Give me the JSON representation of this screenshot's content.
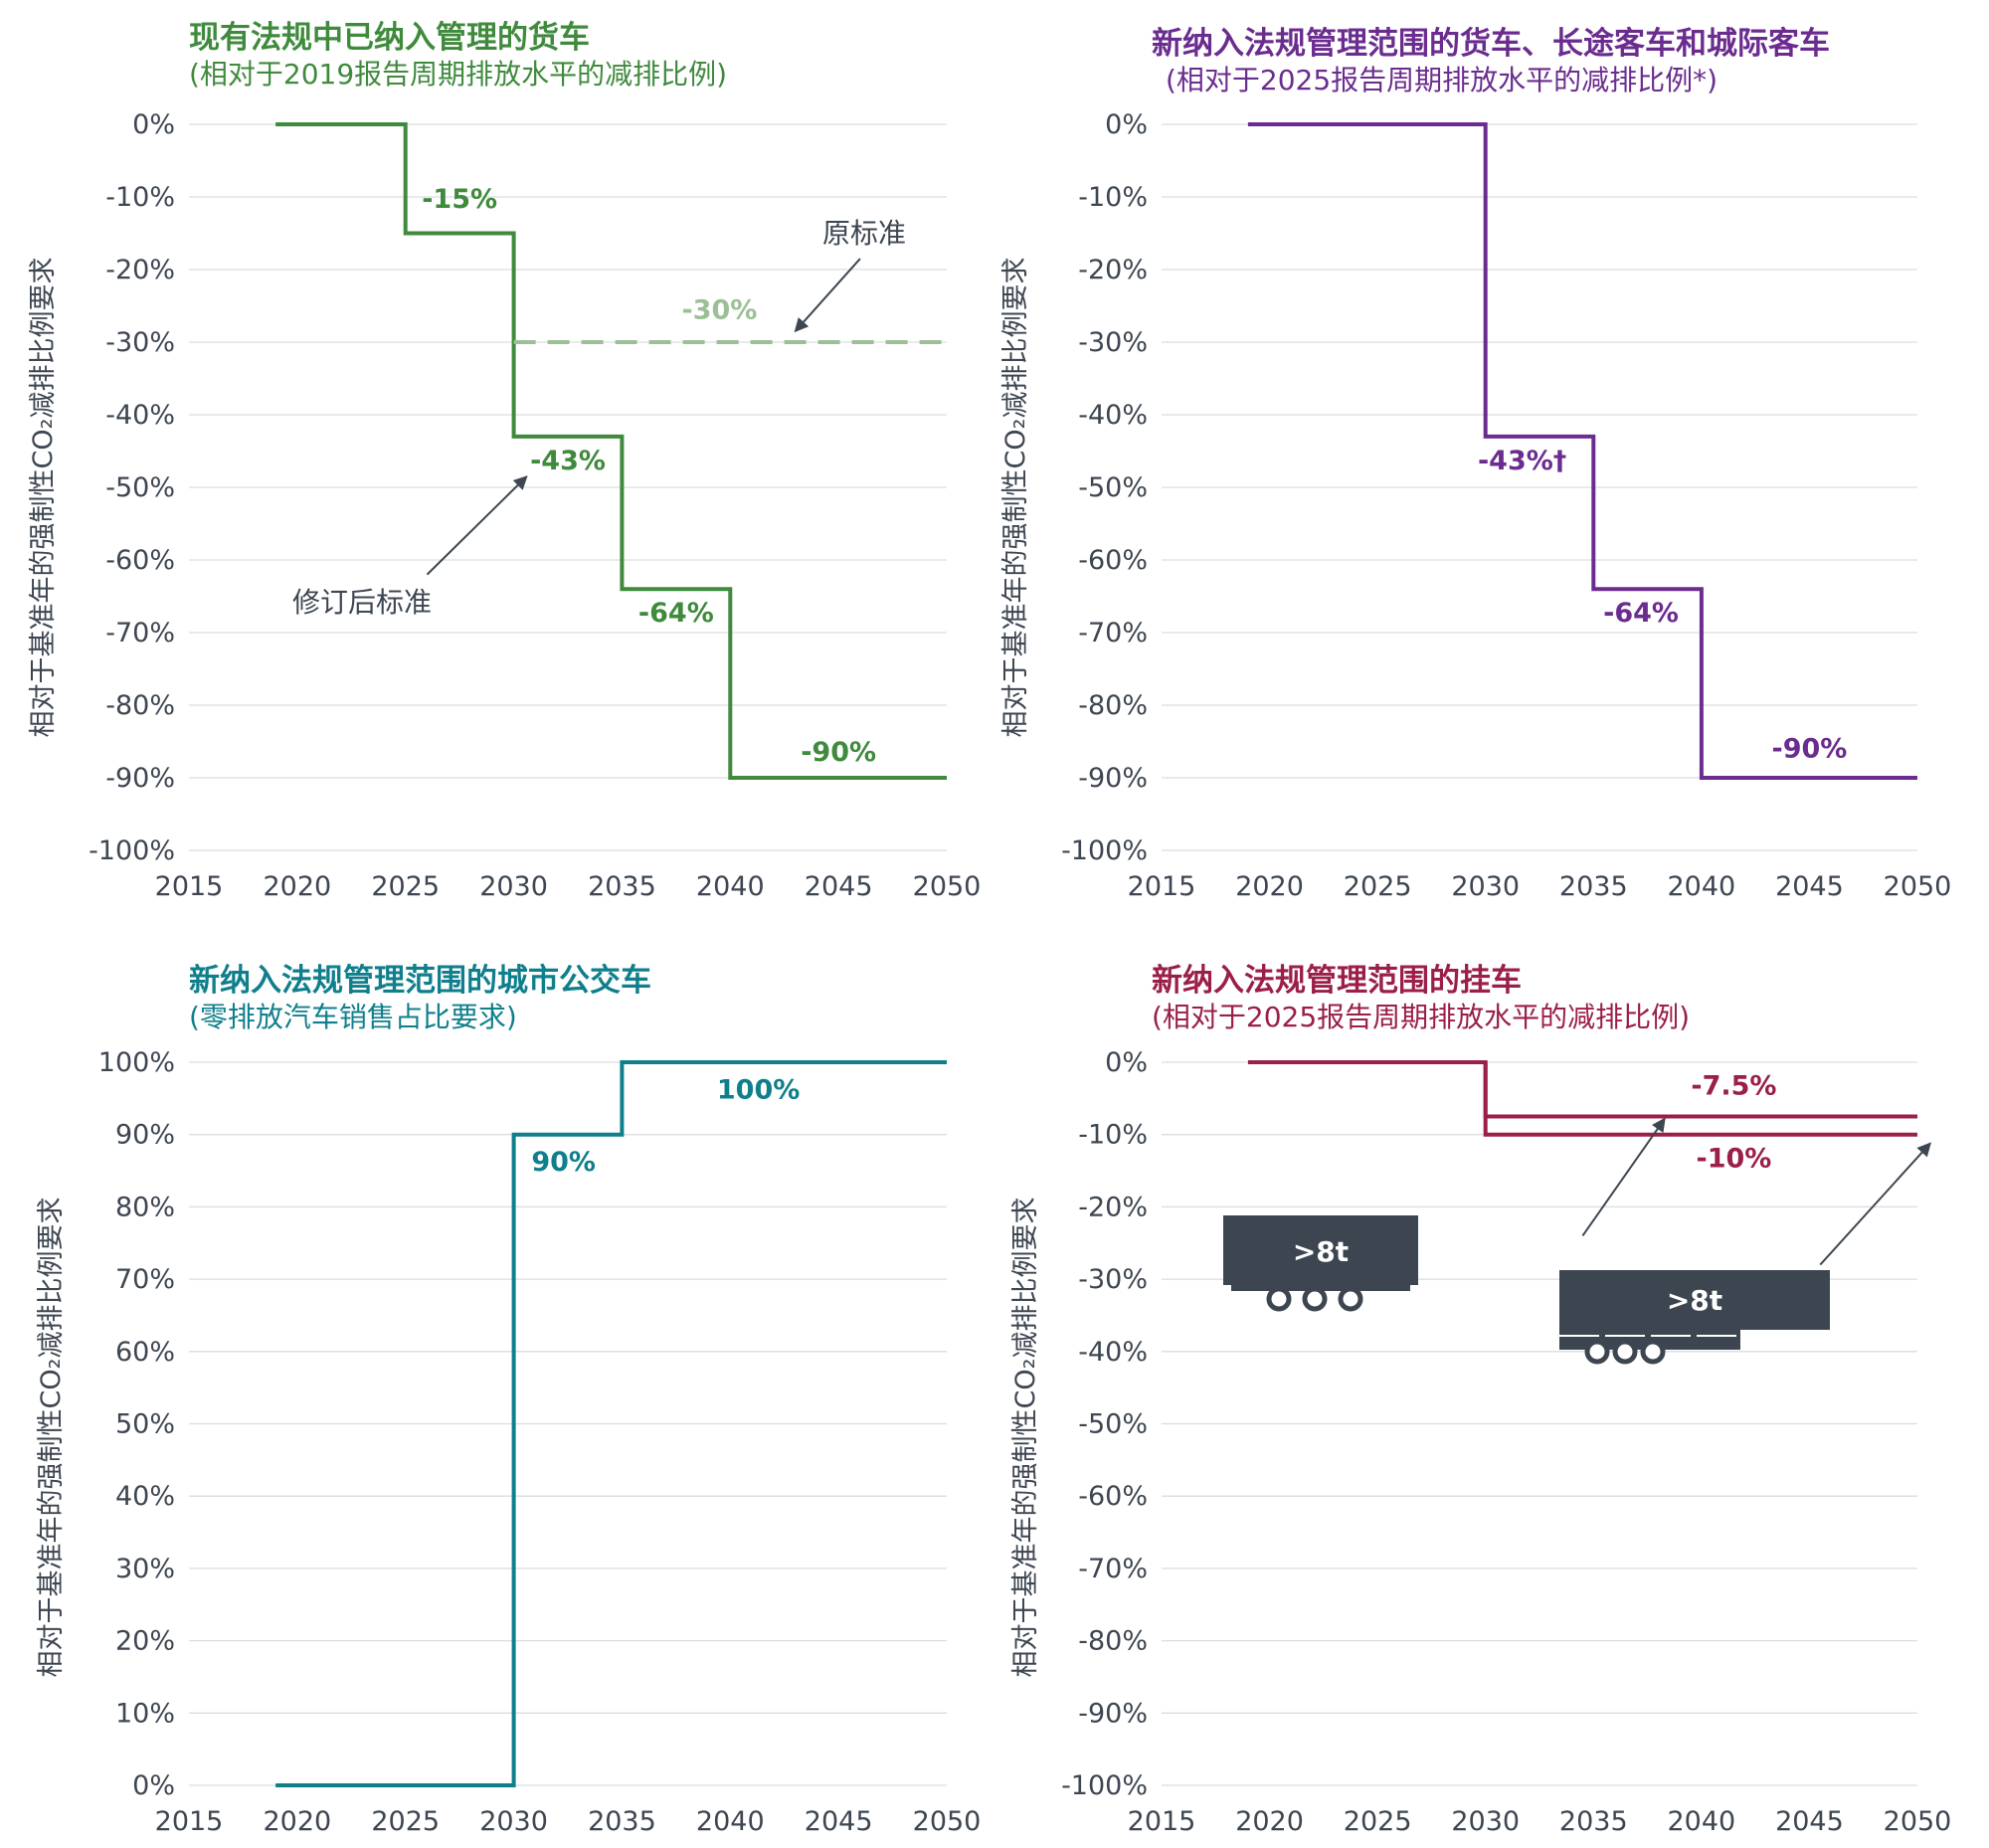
{
  "colors": {
    "green": "#3f8a3c",
    "green_light": "#9dbf96",
    "purple": "#6b2c8f",
    "teal": "#0f7f8c",
    "crimson": "#9b1f48",
    "text": "#3d4651",
    "grid": "#d9dde1",
    "trailer": "#3d4650"
  },
  "chart_data": [
    {
      "id": "p1",
      "type": "line",
      "step": true,
      "title": "现有法规中已纳入管理的货车",
      "subtitle": "(相对于2019报告周期排放水平的减排比例)",
      "ylabel": "相对于基准年的强制性CO₂减排比例要求",
      "x_ticks": [
        "2015",
        "2020",
        "2025",
        "2030",
        "2035",
        "2040",
        "2045",
        "2050"
      ],
      "y_ticks": [
        "0%",
        "-10%",
        "-20%",
        "-30%",
        "-40%",
        "-50%",
        "-60%",
        "-70%",
        "-80%",
        "-90%",
        "-100%"
      ],
      "xlim": [
        2015,
        2050
      ],
      "ylim": [
        -100,
        0
      ],
      "grid": true,
      "series": [
        {
          "name": "修订后标准",
          "color": "#3f8a3c",
          "dashed": false,
          "points": [
            [
              2019,
              0
            ],
            [
              2025,
              0
            ],
            [
              2025,
              -15
            ],
            [
              2030,
              -15
            ],
            [
              2030,
              -43
            ],
            [
              2035,
              -43
            ],
            [
              2035,
              -64
            ],
            [
              2040,
              -64
            ],
            [
              2040,
              -90
            ],
            [
              2050,
              -90
            ]
          ]
        },
        {
          "name": "原标准",
          "color": "#9dbf96",
          "dashed": true,
          "points": [
            [
              2030,
              -30
            ],
            [
              2050,
              -30
            ]
          ]
        }
      ],
      "data_labels": [
        {
          "text": "-15%",
          "x": 2027.5,
          "y": -11.5,
          "color": "#3f8a3c"
        },
        {
          "text": "-43%",
          "x": 2032.5,
          "y": -47.5,
          "color": "#3f8a3c"
        },
        {
          "text": "-64%",
          "x": 2037.5,
          "y": -68.5,
          "color": "#3f8a3c"
        },
        {
          "text": "-90%",
          "x": 2045,
          "y": -87.7,
          "color": "#3f8a3c"
        },
        {
          "text": "-30%",
          "x": 2039.5,
          "y": -26.8,
          "color": "#9dbf96"
        }
      ],
      "annotations": [
        {
          "text": "原标准",
          "x": 2045.5,
          "y": -15.5,
          "arrow_from": [
            2046,
            -18.5
          ],
          "arrow_to": [
            2043,
            -28.5
          ]
        },
        {
          "text": "修订后标准",
          "x": 2023,
          "y": -67.5,
          "arrow_from": [
            2026,
            -62
          ],
          "arrow_to": [
            2030.6,
            -48.5
          ]
        }
      ]
    },
    {
      "id": "p2",
      "type": "line",
      "step": true,
      "title": "新纳入法规管理范围的货车、长途客车和城际客车",
      "subtitle": "(相对于2025报告周期排放水平的减排比例*)",
      "ylabel": "相对于基准年的强制性CO₂减排比例要求",
      "x_ticks": [
        "2015",
        "2020",
        "2025",
        "2030",
        "2035",
        "2040",
        "2045",
        "2050"
      ],
      "y_ticks": [
        "0%",
        "-10%",
        "-20%",
        "-30%",
        "-40%",
        "-50%",
        "-60%",
        "-70%",
        "-80%",
        "-90%",
        "-100%"
      ],
      "xlim": [
        2015,
        2050
      ],
      "ylim": [
        -100,
        0
      ],
      "grid": true,
      "series": [
        {
          "color": "#6b2c8f",
          "dashed": false,
          "points": [
            [
              2019,
              0
            ],
            [
              2030,
              0
            ],
            [
              2030,
              -43
            ],
            [
              2035,
              -43
            ],
            [
              2035,
              -64
            ],
            [
              2040,
              -64
            ],
            [
              2040,
              -90
            ],
            [
              2050,
              -90
            ]
          ]
        }
      ],
      "data_labels": [
        {
          "text": "-43%†",
          "x": 2031.7,
          "y": -47.5,
          "color": "#6b2c8f"
        },
        {
          "text": "-64%",
          "x": 2037.2,
          "y": -68.5,
          "color": "#6b2c8f"
        },
        {
          "text": "-90%",
          "x": 2045,
          "y": -87.2,
          "color": "#6b2c8f"
        }
      ],
      "annotations": []
    },
    {
      "id": "p3",
      "type": "line",
      "step": true,
      "title": "新纳入法规管理范围的城市公交车",
      "subtitle": "(零排放汽车销售占比要求)",
      "ylabel": "相对于基准年的强制性CO₂减排比例要求",
      "x_ticks": [
        "2015",
        "2020",
        "2025",
        "2030",
        "2035",
        "2040",
        "2045",
        "2050"
      ],
      "y_ticks": [
        "100%",
        "90%",
        "80%",
        "70%",
        "60%",
        "50%",
        "40%",
        "30%",
        "20%",
        "10%",
        "0%"
      ],
      "xlim": [
        2015,
        2050
      ],
      "ylim": [
        0,
        100
      ],
      "grid": true,
      "series": [
        {
          "color": "#0f7f8c",
          "dashed": false,
          "points": [
            [
              2019,
              0
            ],
            [
              2030,
              0
            ],
            [
              2030,
              90
            ],
            [
              2035,
              90
            ],
            [
              2035,
              100
            ],
            [
              2050,
              100
            ]
          ]
        }
      ],
      "data_labels": [
        {
          "text": "90%",
          "x": 2032.3,
          "y": 85,
          "color": "#0f7f8c"
        },
        {
          "text": "100%",
          "x": 2041.3,
          "y": 95,
          "color": "#0f7f8c"
        }
      ],
      "annotations": []
    },
    {
      "id": "p4",
      "type": "line",
      "step": true,
      "title": "新纳入法规管理范围的挂车",
      "subtitle": "(相对于2025报告周期排放水平的减排比例)",
      "ylabel": "相对于基准年的强制性CO₂减排比例要求",
      "x_ticks": [
        "2015",
        "2020",
        "2025",
        "2030",
        "2035",
        "2040",
        "2045",
        "2050"
      ],
      "y_ticks": [
        "0%",
        "-10%",
        "-20%",
        "-30%",
        "-40%",
        "-50%",
        "-60%",
        "-70%",
        "-80%",
        "-90%",
        "-100%"
      ],
      "xlim": [
        2015,
        2050
      ],
      "ylim": [
        -100,
        0
      ],
      "grid": true,
      "series": [
        {
          "color": "#9b1f48",
          "dashed": false,
          "points": [
            [
              2019,
              0
            ],
            [
              2030,
              0
            ],
            [
              2030,
              -7.5
            ],
            [
              2050,
              -7.5
            ]
          ]
        },
        {
          "color": "#9b1f48",
          "dashed": false,
          "points": [
            [
              2030,
              0
            ],
            [
              2030,
              -10
            ],
            [
              2050,
              -10
            ]
          ]
        }
      ],
      "data_labels": [
        {
          "text": "-7.5%",
          "x": 2041.5,
          "y": -4.5,
          "color": "#9b1f48"
        },
        {
          "text": "-10%",
          "x": 2041.5,
          "y": -14.5,
          "color": "#9b1f48"
        }
      ],
      "annotations": [
        {
          "text": "",
          "arrow_from": [
            2034.5,
            -24
          ],
          "arrow_to": [
            2038.3,
            -7.8
          ]
        },
        {
          "text": "",
          "arrow_from": [
            2045.5,
            -28
          ],
          "arrow_to": [
            2050.6,
            -11.2
          ]
        }
      ],
      "trailers": [
        {
          "text": ">8t",
          "kind": "rigid"
        },
        {
          "text": ">8t",
          "kind": "semi"
        }
      ]
    }
  ]
}
